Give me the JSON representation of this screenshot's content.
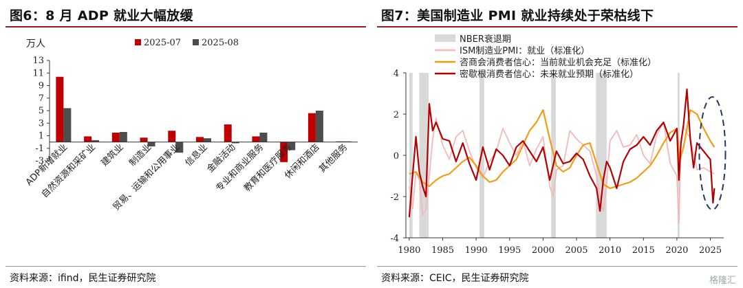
{
  "left": {
    "title": "图6：8 月 ADP 就业大幅放缓",
    "source": "资料来源：ifind，民生证券研究院",
    "chart_data": {
      "type": "bar",
      "unit": "万人",
      "categories": [
        "ADP新增就业",
        "自然资源和采矿业",
        "建筑业",
        "制造业",
        "贸易、运输和公用事业",
        "信息业",
        "金融活动",
        "专业和商业服务",
        "教育和医疗服务",
        "休闲和酒店",
        "其他服务"
      ],
      "series": [
        {
          "name": "2025-07",
          "color": "#c00000",
          "values": [
            10.4,
            0.9,
            1.5,
            0.7,
            1.8,
            0.8,
            2.8,
            0.9,
            -3.2,
            4.6,
            0.1
          ]
        },
        {
          "name": "2025-08",
          "color": "#4d4d4d",
          "values": [
            5.4,
            0.3,
            1.6,
            -0.7,
            -1.7,
            0.6,
            -0.2,
            1.5,
            -1.3,
            5.0,
            0.1
          ]
        }
      ],
      "yticks": [
        13,
        11,
        9,
        7,
        5,
        3,
        1,
        -1,
        -3
      ],
      "ylim": [
        -3,
        13
      ],
      "legend_position": "top-center"
    }
  },
  "right": {
    "title": "图7：美国制造业 PMI 就业持续处于荣枯线下",
    "source": "资料来源：CEIC，民生证券研究院",
    "watermark": "格隆汇",
    "chart_data": {
      "type": "line",
      "xticks": [
        1980,
        1985,
        1990,
        1995,
        2000,
        2005,
        2010,
        2015,
        2020,
        2025
      ],
      "yticks": [
        4,
        2,
        0,
        -2,
        -4
      ],
      "xlim": [
        1979.5,
        2027
      ],
      "ylim": [
        -4,
        4
      ],
      "recessions": [
        [
          1980.0,
          1980.5
        ],
        [
          1981.5,
          1982.9
        ],
        [
          1990.5,
          1991.2
        ],
        [
          2001.2,
          2001.9
        ],
        [
          2007.9,
          2009.5
        ],
        [
          2020.1,
          2020.4
        ]
      ],
      "legend": [
        {
          "label": "NBER衰退期",
          "color": "#d9d9d9",
          "kind": "box"
        },
        {
          "label": "ISM制造业PMI：就业（标准化）",
          "color": "#f4b8b8",
          "kind": "line"
        },
        {
          "label": "咨商会消费者信心：当前就业机会充足（标准化）",
          "color": "#f39c12",
          "kind": "line"
        },
        {
          "label": "密歇根消费者信心：未来就业预期（标准化）",
          "color": "#b30000",
          "kind": "line"
        }
      ],
      "series": [
        {
          "name": "ISM制造业PMI：就业（标准化）",
          "color": "#f4b8b8",
          "x": [
            1980,
            1980.5,
            1981,
            1981.5,
            1982,
            1982.5,
            1983,
            1983.5,
            1984,
            1985,
            1986,
            1987,
            1988,
            1989,
            1990,
            1991,
            1992,
            1993,
            1994,
            1995,
            1996,
            1997,
            1998,
            1999,
            2000,
            2001,
            2001.5,
            2002,
            2003,
            2004,
            2005,
            2006,
            2007,
            2008,
            2008.5,
            2009,
            2009.5,
            2010,
            2011,
            2012,
            2013,
            2014,
            2015,
            2016,
            2017,
            2018,
            2019,
            2020,
            2020.3,
            2020.6,
            2021,
            2021.5,
            2022,
            2022.5,
            2023,
            2024,
            2025,
            2025.6
          ],
          "y": [
            -1.5,
            -2.6,
            -0.8,
            -1.2,
            -2.9,
            -2.6,
            -1.0,
            0.8,
            1.8,
            0.5,
            -0.2,
            0.9,
            1.2,
            0.2,
            -0.6,
            -1.1,
            -0.3,
            0.2,
            1.3,
            0.6,
            0.0,
            0.7,
            -0.5,
            0.3,
            0.9,
            -1.5,
            -2.0,
            -0.7,
            -0.5,
            1.2,
            0.8,
            0.5,
            0.2,
            -1.0,
            -2.0,
            -2.7,
            -1.4,
            0.7,
            1.2,
            0.4,
            0.5,
            1.0,
            0.0,
            -0.4,
            1.0,
            1.6,
            -0.4,
            -1.0,
            -3.3,
            0.5,
            1.4,
            1.1,
            0.8,
            0.1,
            -0.7,
            -0.6,
            -0.8,
            -0.9
          ]
        },
        {
          "name": "咨商会消费者信心：当前就业机会充足（标准化）",
          "color": "#f39c12",
          "x": [
            1980,
            1981,
            1982,
            1983,
            1984,
            1985,
            1986,
            1987,
            1988,
            1989,
            1990,
            1991,
            1992,
            1993,
            1994,
            1995,
            1996,
            1997,
            1998,
            1999,
            2000,
            2001,
            2002,
            2003,
            2004,
            2005,
            2006,
            2007,
            2008,
            2009,
            2010,
            2011,
            2012,
            2013,
            2014,
            2015,
            2016,
            2017,
            2018,
            2019,
            2020,
            2020.4,
            2021,
            2022,
            2023,
            2024,
            2025,
            2025.6
          ],
          "y": [
            -0.9,
            -0.8,
            -1.3,
            -1.5,
            -1.2,
            -1.0,
            -0.9,
            -0.6,
            -0.3,
            -0.1,
            -0.5,
            -1.0,
            -1.3,
            -1.2,
            -0.8,
            -0.5,
            -0.2,
            0.5,
            1.2,
            1.6,
            2.2,
            0.8,
            -0.5,
            -0.8,
            -0.6,
            0.0,
            0.5,
            0.6,
            -0.4,
            -1.4,
            -1.6,
            -1.5,
            -1.4,
            -1.3,
            -1.1,
            -0.8,
            -0.5,
            0.0,
            0.6,
            1.1,
            1.3,
            -0.3,
            0.4,
            2.2,
            2.0,
            1.3,
            0.7,
            0.4
          ]
        },
        {
          "name": "密歇根消费者信心：未来就业预期（标准化）",
          "color": "#b30000",
          "x": [
            1980,
            1980.5,
            1981,
            1981.5,
            1982,
            1982.5,
            1983,
            1983.5,
            1984,
            1985,
            1986,
            1987,
            1988,
            1989,
            1990,
            1991,
            1992,
            1993,
            1994,
            1995,
            1996,
            1997,
            1998,
            1999,
            2000,
            2001,
            2002,
            2003,
            2004,
            2005,
            2006,
            2007,
            2008,
            2008.5,
            2009,
            2009.5,
            2010,
            2011,
            2012,
            2013,
            2014,
            2015,
            2016,
            2017,
            2018,
            2019,
            2020,
            2020.3,
            2020.6,
            2021,
            2021.5,
            2022,
            2022.5,
            2023,
            2024,
            2025,
            2025.4,
            2025.6
          ],
          "y": [
            -3.0,
            -1.0,
            0.9,
            -0.8,
            -1.5,
            -2.0,
            2.5,
            1.2,
            1.6,
            0.8,
            0.7,
            -0.3,
            0.6,
            -0.4,
            -1.2,
            0.4,
            -0.7,
            0.3,
            0.0,
            -0.5,
            0.4,
            0.7,
            0.2,
            -0.3,
            0.4,
            -1.2,
            0.2,
            -0.4,
            -0.3,
            0.1,
            -0.2,
            -1.0,
            -1.6,
            -2.7,
            -1.2,
            -0.3,
            -0.6,
            -1.6,
            -0.3,
            0.3,
            0.5,
            0.9,
            0.5,
            1.2,
            1.6,
            0.7,
            1.3,
            -1.2,
            0.6,
            1.5,
            3.2,
            0.8,
            -0.6,
            0.6,
            0.2,
            -0.2,
            -2.3,
            -1.6
          ]
        }
      ],
      "annotation": "dashed-ellipse-2025"
    }
  }
}
